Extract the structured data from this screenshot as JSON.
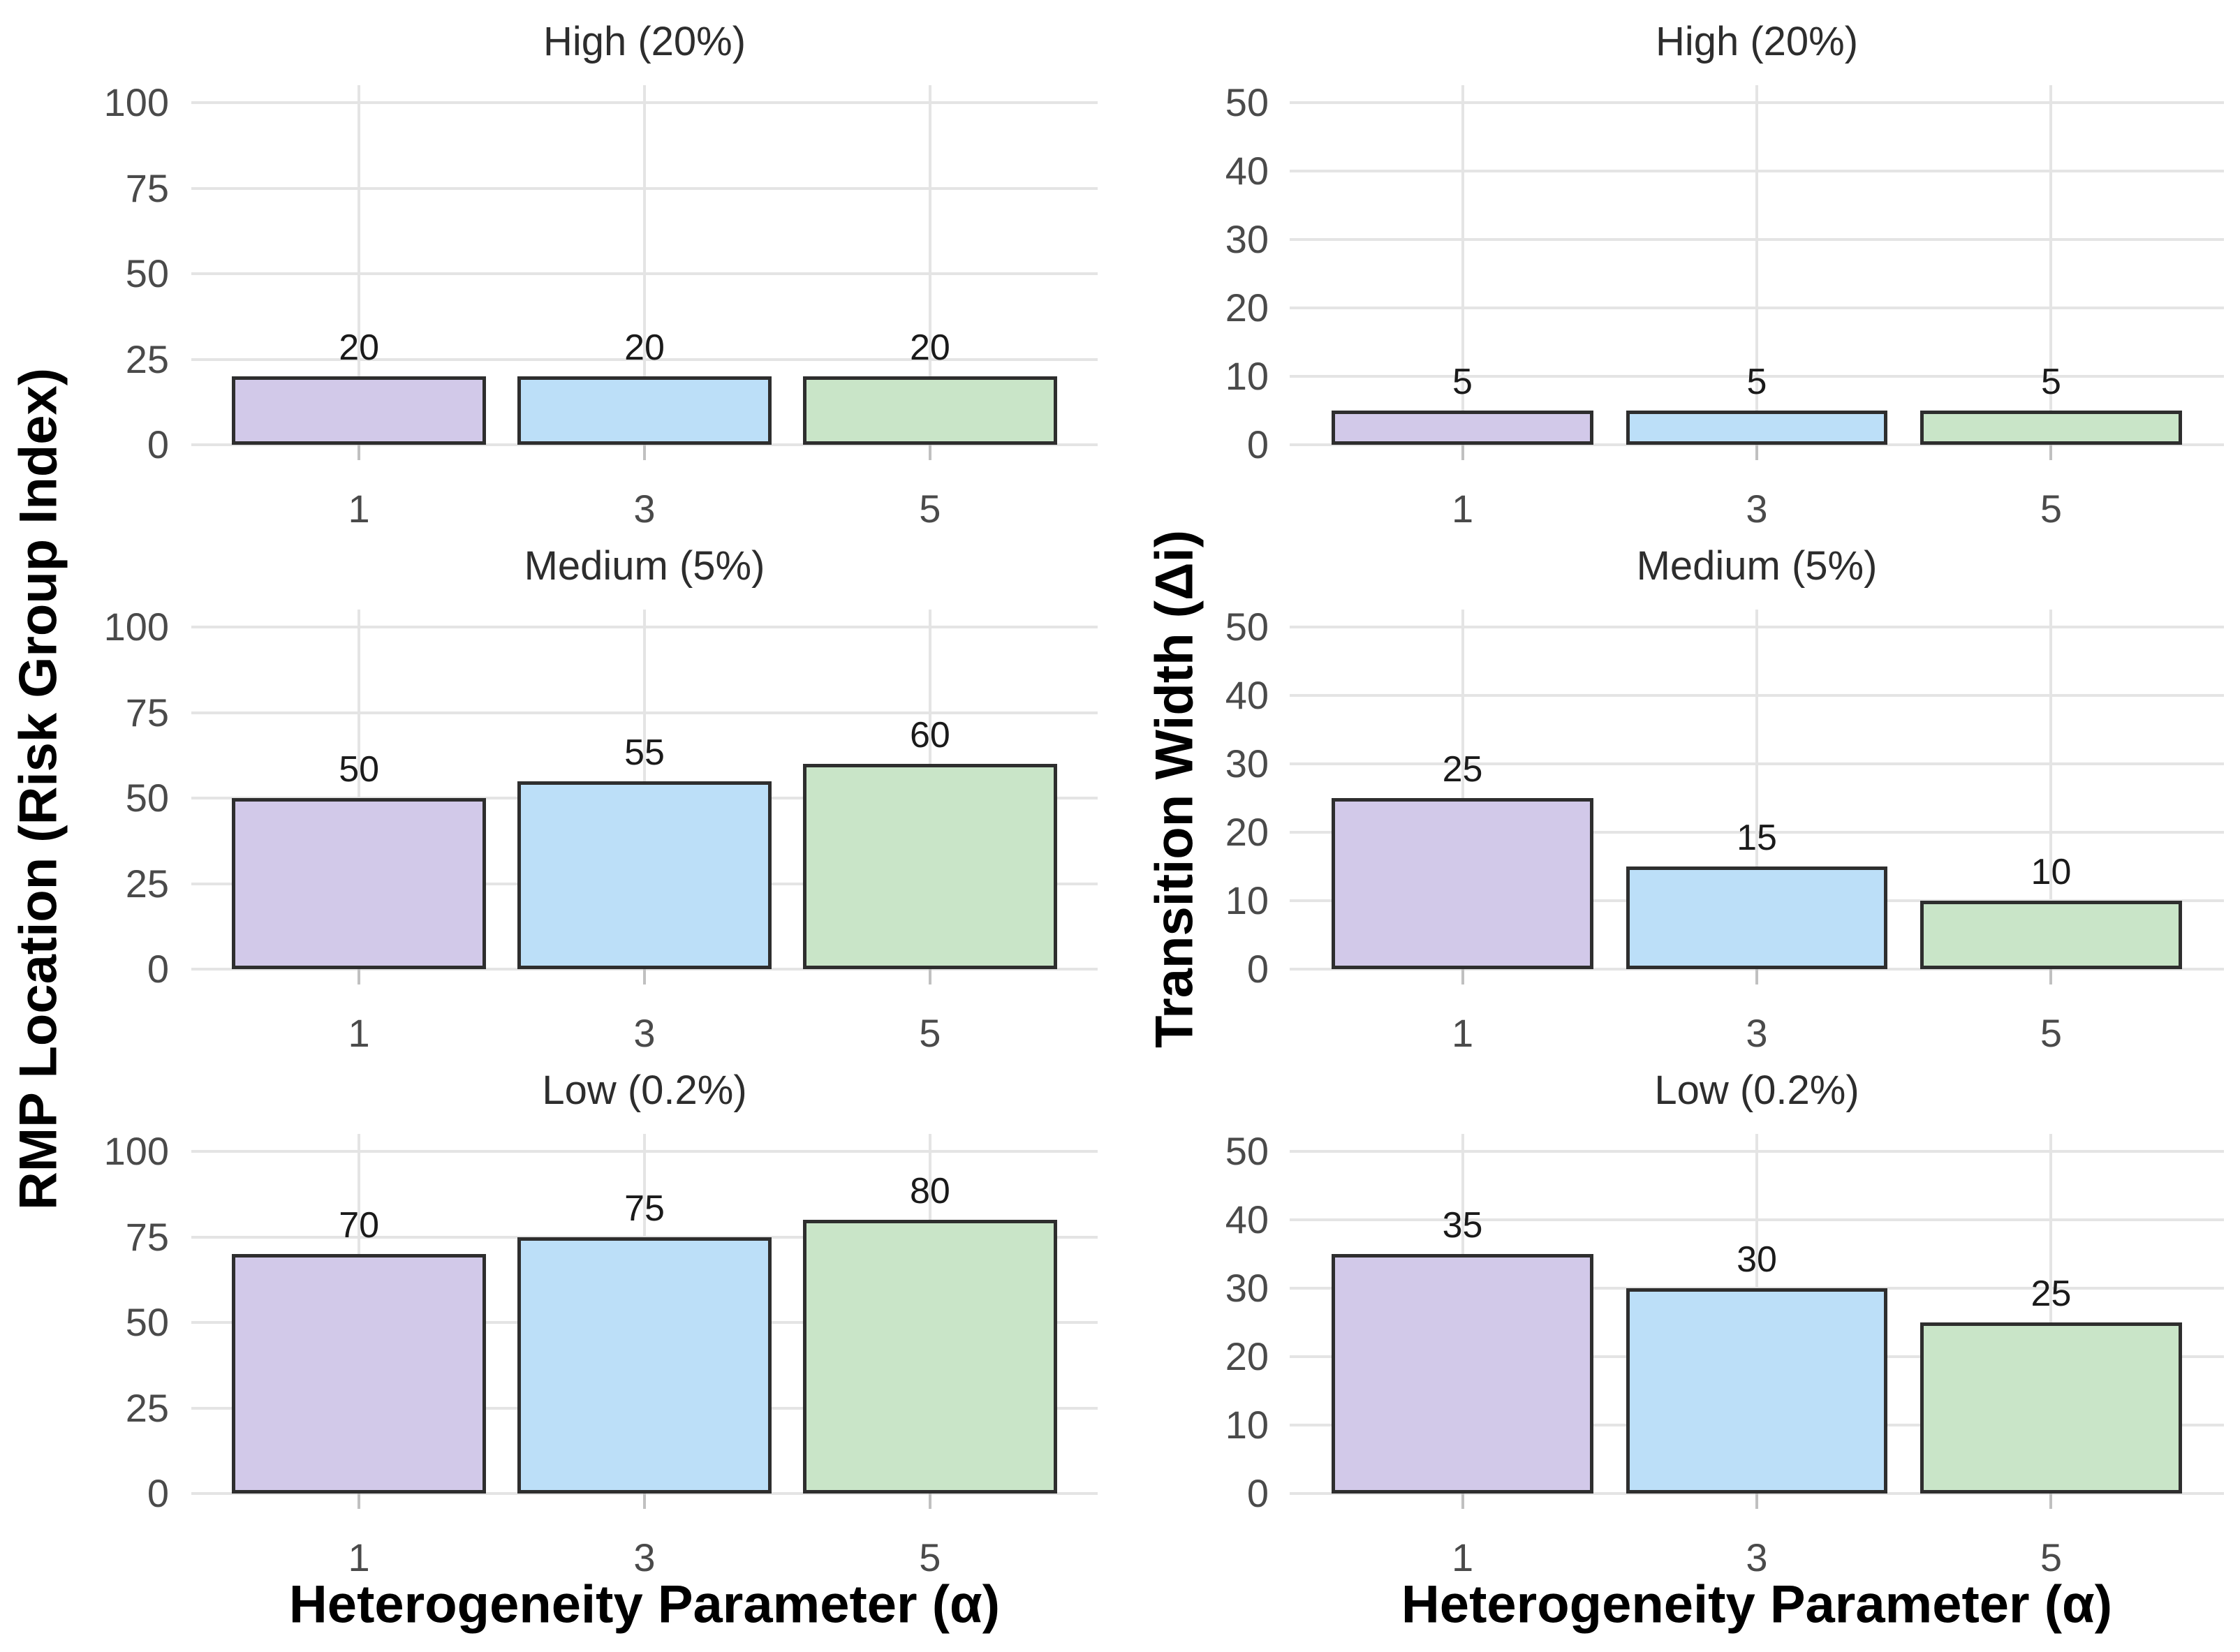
{
  "figure": {
    "left_y_axis_label": "RMP Location (Risk Group Index)",
    "right_y_axis_label": "Transition Width (Δi)",
    "x_axis_label": "Heterogeneity Parameter (α)",
    "facet_titles": [
      "High (20%)",
      "Medium (5%)",
      "Low (0.2%)"
    ],
    "x_categories": [
      "1",
      "3",
      "5"
    ],
    "colors": {
      "bar_fills": [
        "#d2c9e9",
        "#bcdff8",
        "#c9e5c8"
      ],
      "bar_border": "#2e2e2e",
      "gridline": "#e4e4e4",
      "tick_text": "#4a4a4a",
      "facet_title_text": "#2d2d2d",
      "bar_label_text": "#1a1a1a",
      "axis_title_text": "#000000",
      "background": "#ffffff"
    }
  },
  "chart_data": [
    {
      "type": "bar",
      "panel_col": "left",
      "panel_row": 0,
      "facet_title": "High (20%)",
      "ylabel": "RMP Location (Risk Group Index)",
      "xlabel": "Heterogeneity Parameter (α)",
      "categories": [
        "1",
        "3",
        "5"
      ],
      "values": [
        20,
        20,
        20
      ],
      "bar_labels": [
        "20",
        "20",
        "20"
      ],
      "ylim": [
        0,
        100
      ],
      "yticks": [
        0,
        25,
        50,
        75,
        100
      ],
      "grid": "major",
      "legend": "none"
    },
    {
      "type": "bar",
      "panel_col": "left",
      "panel_row": 1,
      "facet_title": "Medium (5%)",
      "ylabel": "RMP Location (Risk Group Index)",
      "xlabel": "Heterogeneity Parameter (α)",
      "categories": [
        "1",
        "3",
        "5"
      ],
      "values": [
        50,
        55,
        60
      ],
      "bar_labels": [
        "50",
        "55",
        "60"
      ],
      "ylim": [
        0,
        100
      ],
      "yticks": [
        0,
        25,
        50,
        75,
        100
      ],
      "grid": "major",
      "legend": "none"
    },
    {
      "type": "bar",
      "panel_col": "left",
      "panel_row": 2,
      "facet_title": "Low (0.2%)",
      "ylabel": "RMP Location (Risk Group Index)",
      "xlabel": "Heterogeneity Parameter (α)",
      "categories": [
        "1",
        "3",
        "5"
      ],
      "values": [
        70,
        75,
        80
      ],
      "bar_labels": [
        "70",
        "75",
        "80"
      ],
      "ylim": [
        0,
        100
      ],
      "yticks": [
        0,
        25,
        50,
        75,
        100
      ],
      "grid": "major",
      "legend": "none"
    },
    {
      "type": "bar",
      "panel_col": "right",
      "panel_row": 0,
      "facet_title": "High (20%)",
      "ylabel": "Transition Width (Δi)",
      "xlabel": "Heterogeneity Parameter (α)",
      "categories": [
        "1",
        "3",
        "5"
      ],
      "values": [
        5,
        5,
        5
      ],
      "bar_labels": [
        "5",
        "5",
        "5"
      ],
      "ylim": [
        0,
        50
      ],
      "yticks": [
        0,
        10,
        20,
        30,
        40,
        50
      ],
      "grid": "major",
      "legend": "none"
    },
    {
      "type": "bar",
      "panel_col": "right",
      "panel_row": 1,
      "facet_title": "Medium (5%)",
      "ylabel": "Transition Width (Δi)",
      "xlabel": "Heterogeneity Parameter (α)",
      "categories": [
        "1",
        "3",
        "5"
      ],
      "values": [
        25,
        15,
        10
      ],
      "bar_labels": [
        "25",
        "15",
        "10"
      ],
      "ylim": [
        0,
        50
      ],
      "yticks": [
        0,
        10,
        20,
        30,
        40,
        50
      ],
      "grid": "major",
      "legend": "none"
    },
    {
      "type": "bar",
      "panel_col": "right",
      "panel_row": 2,
      "facet_title": "Low (0.2%)",
      "ylabel": "Transition Width (Δi)",
      "xlabel": "Heterogeneity Parameter (α)",
      "categories": [
        "1",
        "3",
        "5"
      ],
      "values": [
        35,
        30,
        25
      ],
      "bar_labels": [
        "35",
        "30",
        "25"
      ],
      "ylim": [
        0,
        50
      ],
      "yticks": [
        0,
        10,
        20,
        30,
        40,
        50
      ],
      "grid": "major",
      "legend": "none"
    }
  ]
}
